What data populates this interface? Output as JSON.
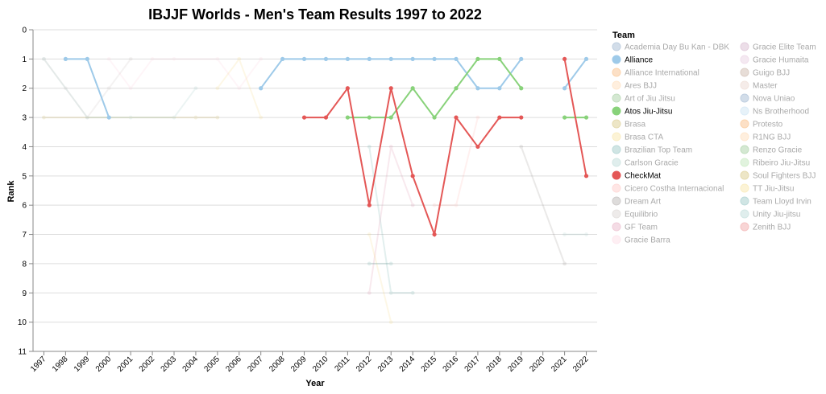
{
  "chart_data": {
    "type": "line",
    "title": "IBJJF Worlds - Men's Team Results 1997 to 2022",
    "xlabel": "Year",
    "ylabel": "Rank",
    "x": [
      "1997",
      "1998",
      "1999",
      "2000",
      "2001",
      "2002",
      "2003",
      "2004",
      "2005",
      "2006",
      "2007",
      "2008",
      "2009",
      "2010",
      "2011",
      "2012",
      "2013",
      "2014",
      "2015",
      "2016",
      "2017",
      "2018",
      "2019",
      "2020",
      "2021",
      "2022"
    ],
    "ylim": [
      0,
      11
    ],
    "y_reversed": true,
    "y_ticks": [
      "0",
      "1",
      "2",
      "3",
      "4",
      "5",
      "6",
      "7",
      "8",
      "9",
      "10",
      "11"
    ],
    "grid": true,
    "legend": {
      "title": "Team",
      "placement": "right"
    },
    "highlighted": [
      "Alliance",
      "Atos Jiu-Jitsu",
      "CheckMat"
    ],
    "series": [
      {
        "name": "Academia Day Bu Kan - DBK",
        "color": "#4c78a8",
        "points": []
      },
      {
        "name": "Alliance",
        "color": "#9ecae9",
        "points": [
          [
            "1998",
            1
          ],
          [
            "1999",
            1
          ],
          [
            "2000",
            3
          ],
          null,
          [
            "2007",
            2
          ],
          [
            "2008",
            1
          ],
          [
            "2009",
            1
          ],
          [
            "2010",
            1
          ],
          [
            "2011",
            1
          ],
          [
            "2012",
            1
          ],
          [
            "2013",
            1
          ],
          [
            "2014",
            1
          ],
          [
            "2015",
            1
          ],
          [
            "2016",
            1
          ],
          [
            "2017",
            2
          ],
          [
            "2018",
            2
          ],
          [
            "2019",
            1
          ],
          null,
          [
            "2021",
            2
          ],
          [
            "2022",
            1
          ]
        ]
      },
      {
        "name": "Alliance International",
        "color": "#f58518",
        "points": []
      },
      {
        "name": "Ares BJJ",
        "color": "#ffbf79",
        "points": []
      },
      {
        "name": "Art of Jiu Jitsu",
        "color": "#54a24b",
        "points": []
      },
      {
        "name": "Atos Jiu-Jitsu",
        "color": "#88d27a",
        "points": [
          [
            "2011",
            3
          ],
          [
            "2012",
            3
          ],
          [
            "2013",
            3
          ],
          [
            "2014",
            2
          ],
          [
            "2015",
            3
          ],
          [
            "2016",
            2
          ],
          [
            "2017",
            1
          ],
          [
            "2018",
            1
          ],
          [
            "2019",
            2
          ],
          null,
          [
            "2021",
            3
          ],
          [
            "2022",
            3
          ]
        ]
      },
      {
        "name": "Brasa",
        "color": "#b79a20",
        "points": [
          [
            "1997",
            3
          ],
          [
            "2004",
            3
          ],
          [
            "2005",
            3
          ]
        ]
      },
      {
        "name": "Brasa CTA",
        "color": "#f2cf5b",
        "points": [
          [
            "2005",
            2
          ],
          [
            "2006",
            1
          ],
          [
            "2007",
            3
          ]
        ]
      },
      {
        "name": "Brazilian Top Team",
        "color": "#439894",
        "points": [
          [
            "2012",
            4
          ],
          [
            "2013",
            9
          ],
          [
            "2014",
            9
          ]
        ]
      },
      {
        "name": "Carlson Gracie",
        "color": "#83bcb6",
        "points": [
          [
            "1997",
            1
          ],
          [
            "1999",
            3
          ],
          [
            "2001",
            3
          ],
          [
            "2003",
            3
          ],
          [
            "2004",
            2
          ]
        ]
      },
      {
        "name": "CheckMat",
        "color": "#e45756",
        "points": [
          [
            "2009",
            3
          ],
          [
            "2010",
            3
          ],
          [
            "2011",
            2
          ],
          [
            "2012",
            6
          ],
          [
            "2013",
            2
          ],
          [
            "2014",
            5
          ],
          [
            "2015",
            7
          ],
          [
            "2016",
            3
          ],
          [
            "2017",
            4
          ],
          [
            "2018",
            3
          ],
          [
            "2019",
            3
          ],
          null,
          [
            "2021",
            1
          ],
          [
            "2022",
            5
          ]
        ]
      },
      {
        "name": "Cicero Costha Internacional",
        "color": "#ff9d98",
        "points": [
          [
            "2015",
            6
          ],
          [
            "2016",
            6
          ],
          [
            "2017",
            3
          ]
        ]
      },
      {
        "name": "Dream Art",
        "color": "#79706e",
        "points": [
          [
            "2019",
            4
          ],
          [
            "2021",
            8
          ]
        ]
      },
      {
        "name": "Equilibrio",
        "color": "#bab0ac",
        "points": [
          [
            "1997",
            1
          ],
          [
            "1998",
            2
          ],
          [
            "1999",
            3
          ],
          [
            "2000",
            2
          ],
          [
            "2001",
            1
          ]
        ]
      },
      {
        "name": "GF Team",
        "color": "#d67195",
        "points": [
          [
            "2012",
            9
          ],
          [
            "2013",
            4
          ],
          [
            "2014",
            6
          ]
        ]
      },
      {
        "name": "Gracie Barra",
        "color": "#fcbfd2",
        "points": [
          [
            "2000",
            1
          ],
          [
            "2001",
            2
          ],
          [
            "2002",
            1
          ],
          [
            "2003",
            1
          ],
          [
            "2005",
            1
          ],
          [
            "2006",
            2
          ],
          [
            "2007",
            1
          ]
        ]
      },
      {
        "name": "Gracie Elite Team",
        "color": "#b279a2",
        "points": []
      },
      {
        "name": "Gracie Humaita",
        "color": "#d6a5c9",
        "points": []
      },
      {
        "name": "Guigo BJJ",
        "color": "#9e765f",
        "points": []
      },
      {
        "name": "Master",
        "color": "#d8b5a5",
        "points": []
      },
      {
        "name": "Nova Uniao",
        "color": "#4c78a8",
        "points": []
      },
      {
        "name": "Ns Brotherhood",
        "color": "#9ecae9",
        "points": []
      },
      {
        "name": "Protesto",
        "color": "#f58518",
        "points": []
      },
      {
        "name": "R1NG BJJ",
        "color": "#ffbf79",
        "points": []
      },
      {
        "name": "Renzo Gracie",
        "color": "#54a24b",
        "points": []
      },
      {
        "name": "Ribeiro Jiu-Jitsu",
        "color": "#88d27a",
        "points": []
      },
      {
        "name": "Soul Fighters BJJ",
        "color": "#b79a20",
        "points": []
      },
      {
        "name": "TT Jiu-Jitsu",
        "color": "#f2cf5b",
        "points": [
          [
            "2012",
            7
          ],
          [
            "2013",
            10
          ]
        ]
      },
      {
        "name": "Team Lloyd Irvin",
        "color": "#439894",
        "points": [
          [
            "2012",
            8
          ],
          [
            "2013",
            8
          ]
        ]
      },
      {
        "name": "Unity Jiu-jitsu",
        "color": "#83bcb6",
        "points": [
          [
            "2021",
            7
          ],
          [
            "2022",
            7
          ]
        ]
      },
      {
        "name": "Zenith BJJ",
        "color": "#e45756",
        "points": []
      }
    ]
  }
}
